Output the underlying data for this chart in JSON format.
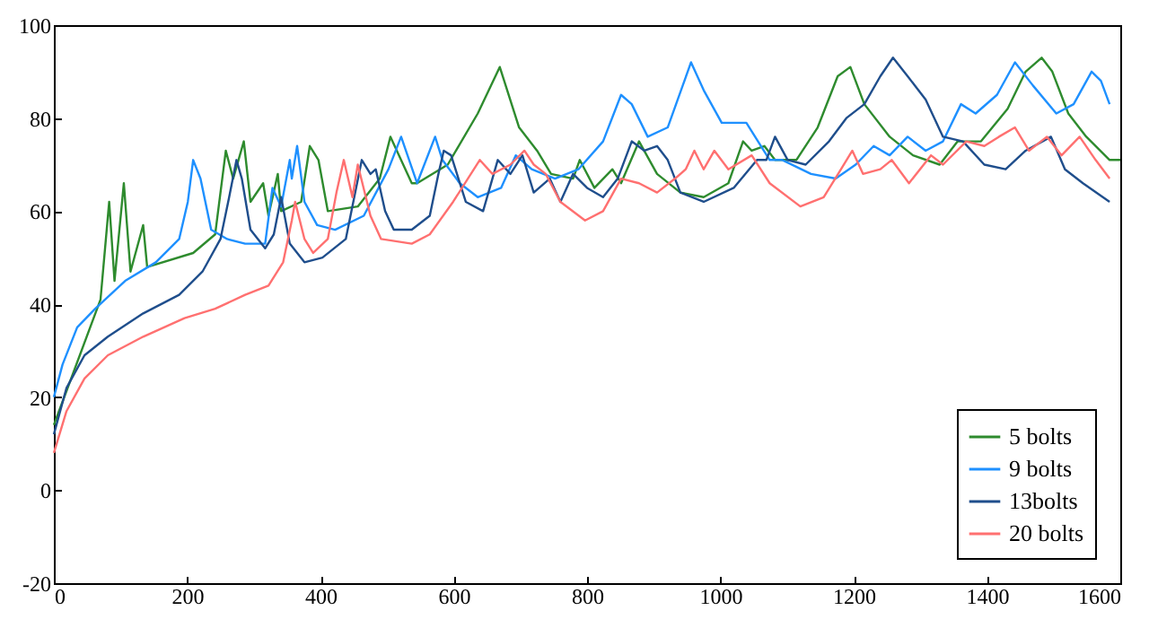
{
  "chart_data": {
    "type": "line",
    "xlim": [
      0,
      1600
    ],
    "xticks": [
      0,
      200,
      400,
      600,
      800,
      1000,
      1200,
      1400,
      1600
    ],
    "ylim": [
      -20,
      100
    ],
    "yticks": [
      -20,
      0,
      20,
      40,
      60,
      80,
      100
    ],
    "grid": false,
    "legend": "bottom right",
    "series": [
      {
        "name": "5 bolts",
        "color": "#2e8b2e",
        "x": [
          0,
          70,
          83,
          91,
          105,
          115,
          134,
          140,
          209,
          242,
          258,
          269,
          285,
          295,
          314,
          322,
          336,
          341,
          371,
          384,
          397,
          411,
          456,
          489,
          505,
          537,
          545,
          591,
          636,
          669,
          698,
          725,
          746,
          779,
          789,
          811,
          838,
          851,
          878,
          905,
          940,
          975,
          1012,
          1034,
          1047,
          1066,
          1082,
          1114,
          1146,
          1176,
          1195,
          1216,
          1254,
          1289,
          1329,
          1356,
          1391,
          1431,
          1458,
          1482,
          1498,
          1522,
          1549,
          1584,
          1600
        ],
        "values": [
          14,
          41,
          62,
          45,
          66,
          47,
          57,
          48,
          51,
          55,
          73,
          67,
          75,
          62,
          66,
          59,
          68,
          60,
          62,
          74,
          71,
          60,
          61,
          67,
          76,
          66,
          66,
          70,
          81,
          91,
          78,
          73,
          68,
          67,
          71,
          65,
          69,
          66,
          75,
          68,
          64,
          63,
          66,
          75,
          73,
          74,
          71,
          71,
          78,
          89,
          91,
          83,
          76,
          72,
          70,
          75,
          75,
          82,
          90,
          93,
          90,
          81,
          76,
          71,
          71
        ]
      },
      {
        "name": "9 bolts",
        "color": "#1e90ff",
        "x": [
          0,
          13,
          35,
          62,
          107,
          153,
          188,
          201,
          209,
          220,
          236,
          260,
          287,
          317,
          328,
          341,
          354,
          357,
          365,
          376,
          395,
          422,
          465,
          502,
          521,
          545,
          572,
          583,
          609,
          636,
          671,
          693,
          717,
          752,
          787,
          824,
          851,
          867,
          891,
          921,
          956,
          975,
          1002,
          1039,
          1074,
          1093,
          1136,
          1173,
          1203,
          1230,
          1254,
          1281,
          1308,
          1334,
          1361,
          1383,
          1415,
          1442,
          1469,
          1504,
          1530,
          1557,
          1571,
          1584
        ],
        "values": [
          20,
          27,
          35,
          39,
          45,
          49,
          54,
          62,
          71,
          67,
          56,
          54,
          53,
          53,
          65,
          61,
          71,
          67,
          74,
          62,
          57,
          56,
          59,
          69,
          76,
          66,
          76,
          71,
          66,
          63,
          65,
          72,
          69,
          67,
          69,
          75,
          85,
          83,
          76,
          78,
          92,
          86,
          79,
          79,
          71,
          71,
          68,
          67,
          70,
          74,
          72,
          76,
          73,
          75,
          83,
          81,
          85,
          92,
          87,
          81,
          83,
          90,
          88,
          83
        ]
      },
      {
        "name": "13bolts",
        "color": "#1f4e8c",
        "x": [
          0,
          19,
          46,
          81,
          134,
          188,
          223,
          250,
          263,
          274,
          282,
          295,
          317,
          330,
          341,
          354,
          376,
          403,
          438,
          462,
          475,
          483,
          497,
          510,
          537,
          564,
          577,
          585,
          596,
          618,
          644,
          666,
          685,
          703,
          720,
          744,
          760,
          779,
          800,
          824,
          846,
          867,
          886,
          905,
          921,
          940,
          975,
          1020,
          1055,
          1069,
          1082,
          1101,
          1128,
          1163,
          1189,
          1216,
          1240,
          1259,
          1281,
          1308,
          1334,
          1364,
          1396,
          1428,
          1458,
          1496,
          1517,
          1544,
          1584
        ],
        "values": [
          12,
          22,
          29,
          33,
          38,
          42,
          47,
          54,
          63,
          71,
          67,
          56,
          52,
          55,
          63,
          53,
          49,
          50,
          54,
          71,
          68,
          69,
          60,
          56,
          56,
          59,
          68,
          73,
          72,
          62,
          60,
          71,
          68,
          72,
          64,
          67,
          62,
          68,
          65,
          63,
          67,
          75,
          73,
          74,
          71,
          64,
          62,
          65,
          71,
          71,
          76,
          71,
          70,
          75,
          80,
          83,
          89,
          93,
          89,
          84,
          76,
          75,
          70,
          69,
          73,
          76,
          69,
          66,
          62
        ]
      },
      {
        "name": "20 bolts",
        "color": "#ff7070",
        "x": [
          0,
          19,
          46,
          81,
          134,
          196,
          242,
          287,
          322,
          344,
          357,
          362,
          376,
          389,
          411,
          424,
          435,
          448,
          456,
          475,
          491,
          537,
          564,
          599,
          639,
          658,
          685,
          706,
          720,
          738,
          760,
          797,
          824,
          851,
          878,
          905,
          932,
          948,
          961,
          975,
          991,
          1012,
          1047,
          1074,
          1120,
          1155,
          1181,
          1198,
          1214,
          1240,
          1257,
          1283,
          1316,
          1334,
          1369,
          1396,
          1418,
          1442,
          1463,
          1490,
          1512,
          1539,
          1563,
          1584
        ],
        "values": [
          8,
          17,
          24,
          29,
          33,
          37,
          39,
          42,
          44,
          49,
          58,
          62,
          54,
          51,
          54,
          64,
          71,
          63,
          70,
          59,
          54,
          53,
          55,
          62,
          71,
          68,
          70,
          73,
          70,
          68,
          62,
          58,
          60,
          67,
          66,
          64,
          67,
          69,
          73,
          69,
          73,
          69,
          72,
          66,
          61,
          63,
          69,
          73,
          68,
          69,
          71,
          66,
          72,
          70,
          75,
          74,
          76,
          78,
          73,
          76,
          72,
          76,
          71,
          67
        ]
      }
    ]
  }
}
